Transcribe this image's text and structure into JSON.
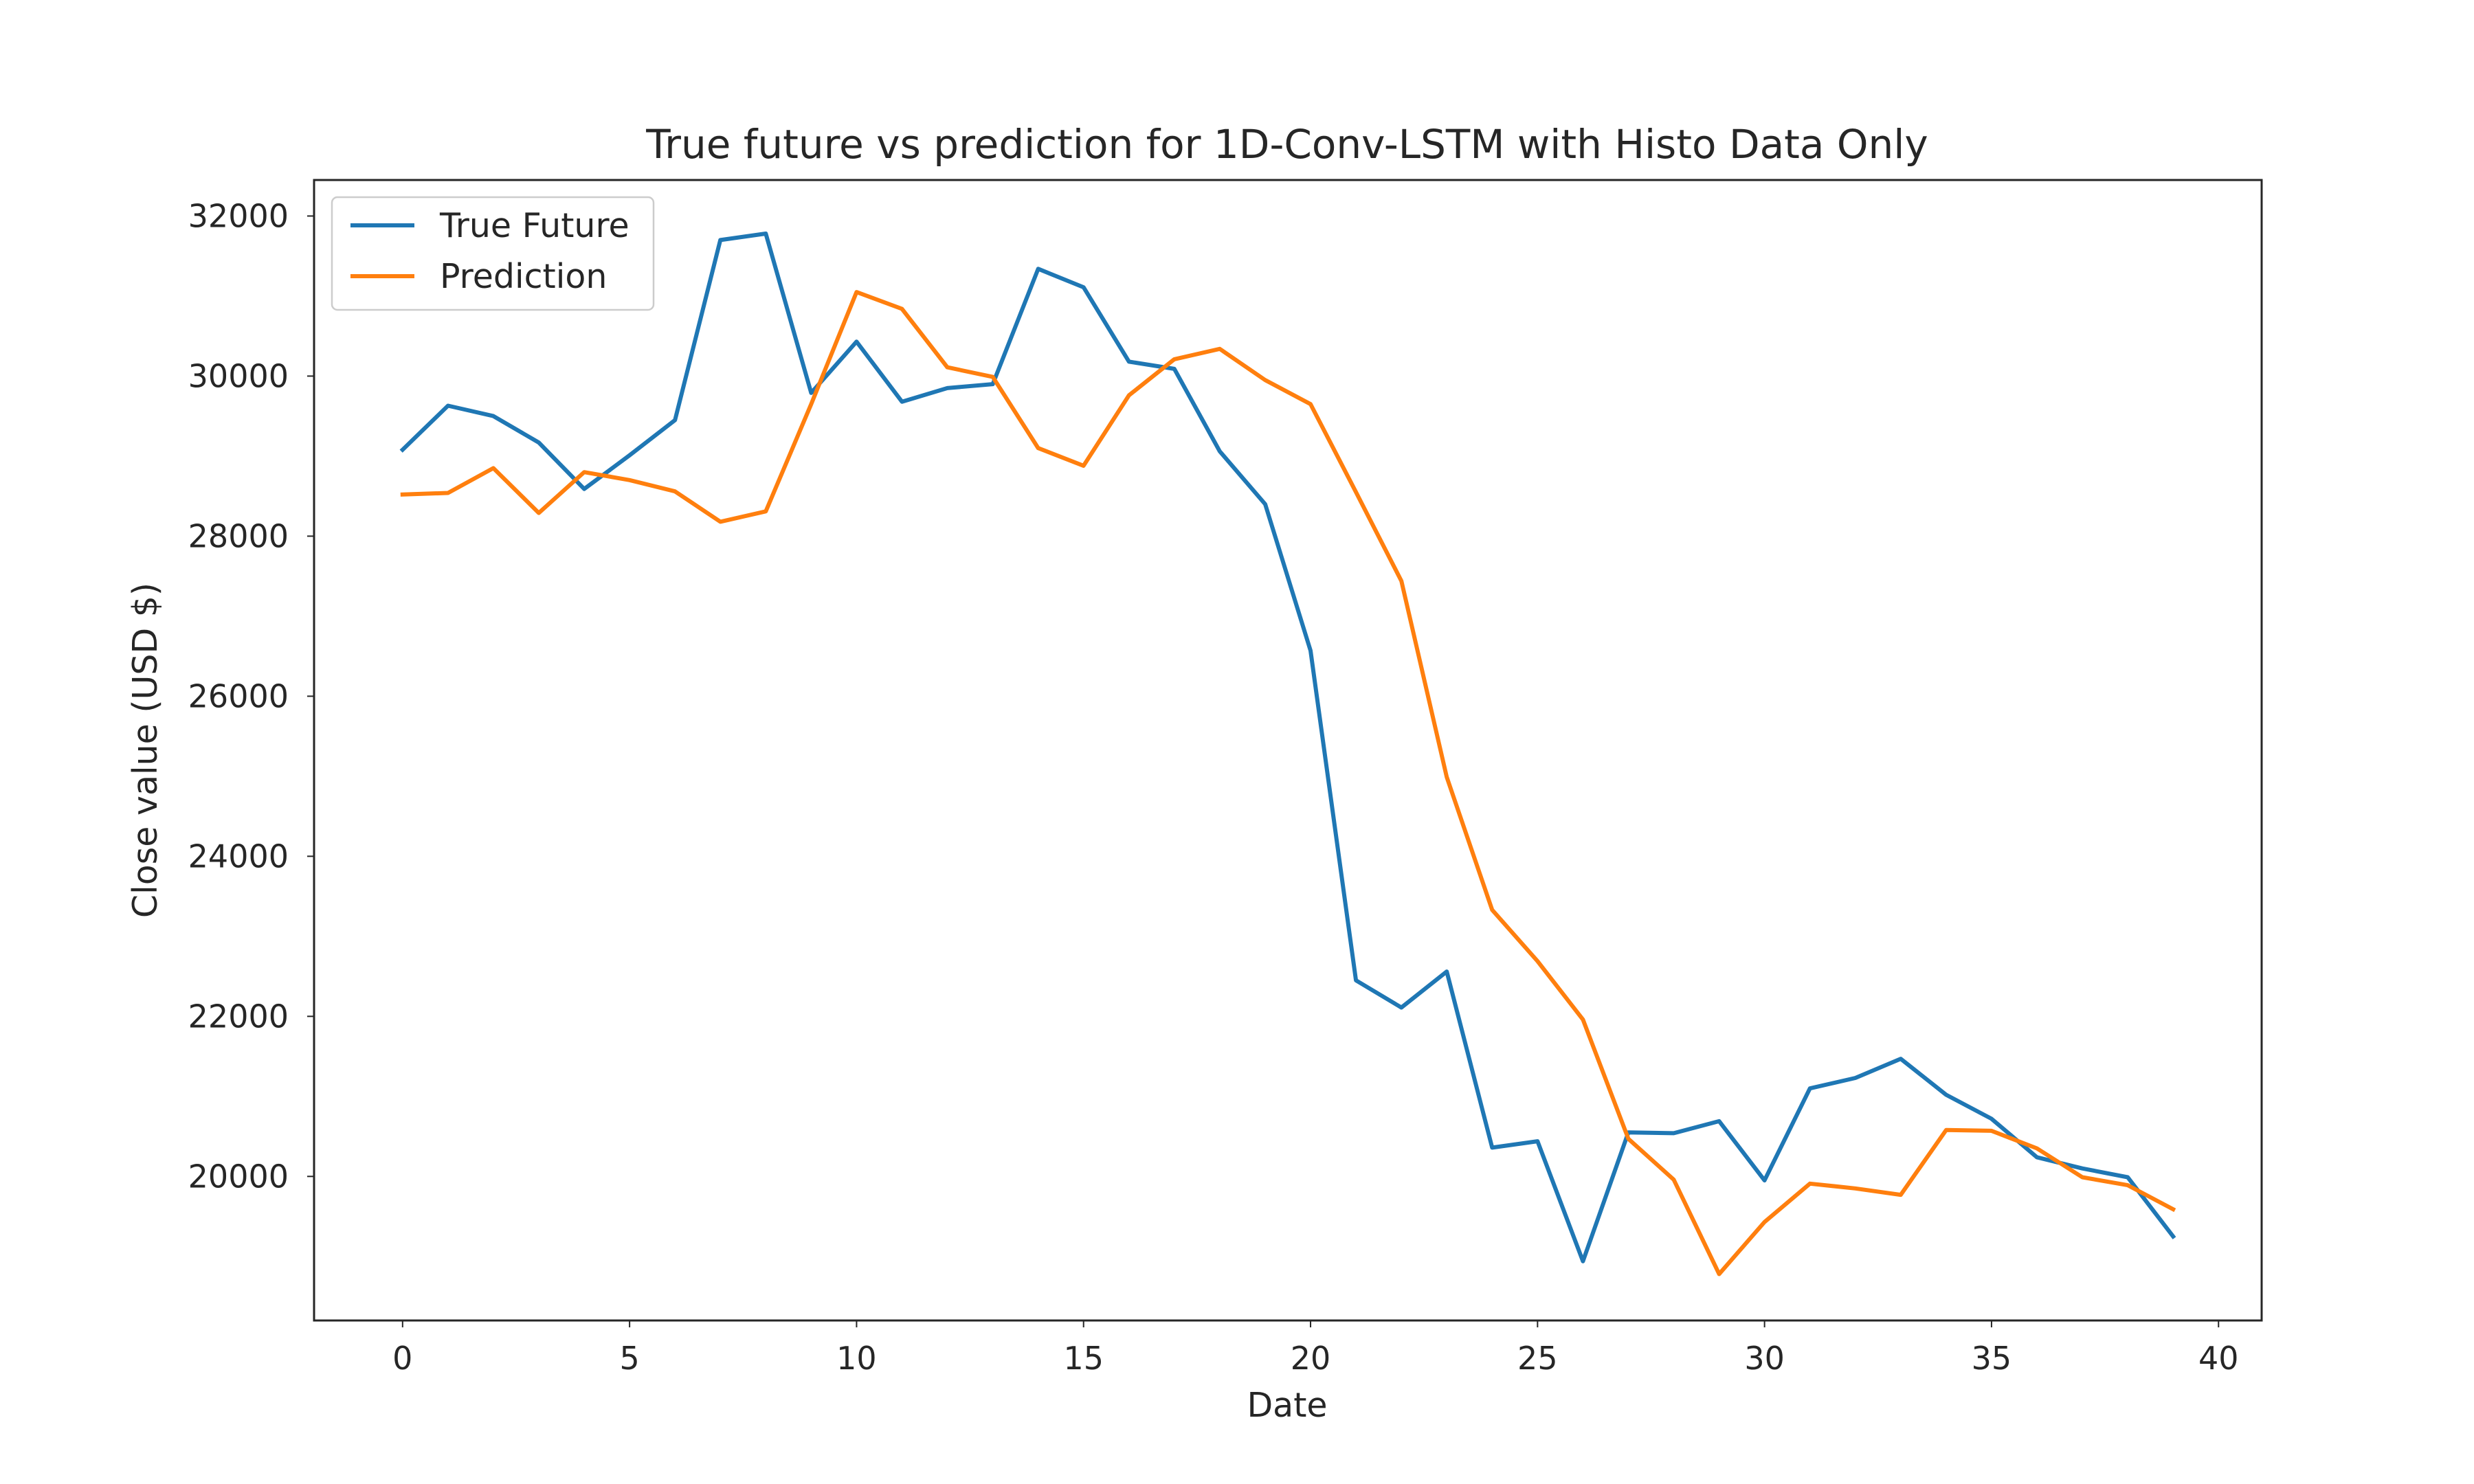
{
  "chart_data": {
    "type": "line",
    "title": "True future vs prediction for 1D-Conv-LSTM with Histo Data Only",
    "xlabel": "Date",
    "ylabel": "Close value (USD $)",
    "xlim": [
      -1.95,
      40.95
    ],
    "ylim": [
      18200,
      32450
    ],
    "xticks": [
      0,
      5,
      10,
      15,
      20,
      25,
      30,
      35,
      40
    ],
    "yticks": [
      20000,
      22000,
      24000,
      26000,
      28000,
      30000,
      32000
    ],
    "grid": false,
    "legend_position": "top-left",
    "x": [
      0,
      1,
      2,
      3,
      4,
      5,
      6,
      7,
      8,
      9,
      10,
      11,
      12,
      13,
      14,
      15,
      16,
      17,
      18,
      19,
      20,
      21,
      22,
      23,
      24,
      25,
      26,
      27,
      28,
      29,
      30,
      31,
      32,
      33,
      34,
      35,
      36,
      37,
      38,
      39
    ],
    "series": [
      {
        "name": "True Future",
        "color": "#1f77b4",
        "values": [
          29080,
          29630,
          29500,
          29170,
          28590,
          29010,
          29450,
          31700,
          31780,
          29790,
          30430,
          29680,
          29850,
          29900,
          31340,
          31110,
          30180,
          30090,
          29060,
          28400,
          26570,
          22450,
          22110,
          22560,
          20360,
          20440,
          18940,
          20550,
          20540,
          20690,
          19950,
          21100,
          21230,
          21470,
          21020,
          20720,
          20240,
          20100,
          19990,
          19250
        ]
      },
      {
        "name": "Prediction",
        "color": "#ff7f0e",
        "values": [
          28520,
          28540,
          28850,
          28290,
          28800,
          28700,
          28560,
          28180,
          28310,
          29650,
          31050,
          30840,
          30110,
          29990,
          29100,
          28880,
          29760,
          30210,
          30340,
          29950,
          29650,
          28550,
          27440,
          24990,
          23330,
          22690,
          21960,
          20470,
          19960,
          18780,
          19430,
          19910,
          19850,
          19770,
          20580,
          20570,
          20350,
          19990,
          19890,
          19590
        ]
      }
    ]
  }
}
